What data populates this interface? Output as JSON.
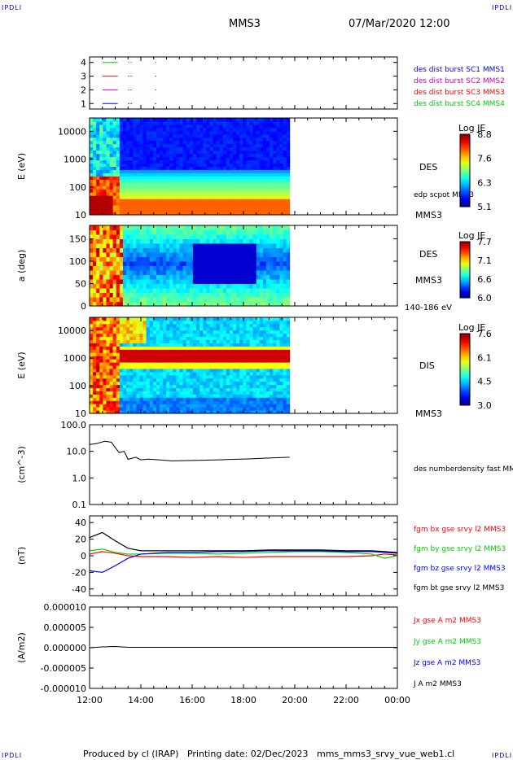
{
  "header": {
    "corner_left_top": "IPDLI",
    "corner_right_top": "IPDLI",
    "corner_left_bottom": "IPDLI",
    "corner_right_bottom": "IPDLI",
    "spacecraft": "MMS3",
    "datetime": "07/Mar/2020 12:00"
  },
  "footer": {
    "produced": "Produced by cl (IRAP)",
    "printing": "Printing date: 02/Dec/2023",
    "file": "mms_mms3_srvy_vue_web1.cl"
  },
  "x_axis": {
    "ticks": [
      "12:00",
      "14:00",
      "16:00",
      "18:00",
      "20:00",
      "22:00",
      "00:00"
    ]
  },
  "colors": {
    "c1": "#0000ff",
    "c2": "#cc00cc",
    "c3": "#ff0000",
    "c4": "#00cc00",
    "black": "#000000"
  },
  "chart_data": [
    {
      "type": "line",
      "panel": "burst-availability",
      "yticks": [
        "4",
        "3",
        "2",
        "1"
      ],
      "ylim": [
        0.6,
        4.4
      ],
      "series": [
        {
          "name": "des dist burst SC1 MMS1",
          "color": "#0000ff",
          "y": 1,
          "segments": [
            [
              12.5,
              13.1
            ],
            [
              13.5,
              13.55
            ],
            [
              13.6,
              13.65
            ],
            [
              14.55,
              14.6
            ]
          ]
        },
        {
          "name": "des dist burst SC2 MMS2",
          "color": "#cc00cc",
          "y": 2,
          "segments": [
            [
              12.5,
              13.1
            ],
            [
              13.5,
              13.55
            ],
            [
              13.6,
              13.65
            ],
            [
              14.55,
              14.6
            ]
          ]
        },
        {
          "name": "des dist burst SC3 MMS3",
          "color": "#ff0000",
          "y": 3,
          "segments": [
            [
              12.5,
              13.1
            ],
            [
              13.5,
              13.55
            ],
            [
              13.6,
              13.65
            ],
            [
              14.55,
              14.6
            ]
          ]
        },
        {
          "name": "des dist burst SC4 MMS4",
          "color": "#00cc00",
          "y": 4,
          "segments": [
            [
              12.5,
              13.1
            ],
            [
              13.5,
              13.55
            ],
            [
              13.6,
              13.65
            ],
            [
              14.55,
              14.6
            ]
          ]
        }
      ]
    },
    {
      "type": "heatmap",
      "panel": "des-energy-spectrogram",
      "ylabel": "E (eV)",
      "yticks": [
        "10000",
        "1000",
        "100",
        "10"
      ],
      "ylim_log": [
        10,
        30000
      ],
      "x_end_hour": 19.8,
      "label": "DES",
      "overlay_label": "edp scpot MMS3",
      "sc_label": "MMS3",
      "colorbar": {
        "title": "Log JE",
        "ticks": [
          "8.8",
          "7.6",
          "6.3",
          "5.1"
        ]
      }
    },
    {
      "type": "heatmap",
      "panel": "des-pitch-angle",
      "ylabel": "a (deg)",
      "yticks": [
        "150",
        "100",
        "50",
        "0"
      ],
      "ylim": [
        0,
        180
      ],
      "x_end_hour": 19.8,
      "label": "DES",
      "sc_label": "MMS3",
      "energy_range": "140-186 eV",
      "colorbar": {
        "title": "Log JE",
        "ticks": [
          "7.7",
          "7.1",
          "6.6",
          "6.0"
        ]
      }
    },
    {
      "type": "heatmap",
      "panel": "dis-energy-spectrogram",
      "ylabel": "E (eV)",
      "yticks": [
        "10000",
        "1000",
        "100",
        "10"
      ],
      "ylim_log": [
        10,
        30000
      ],
      "x_end_hour": 19.8,
      "label": "DIS",
      "sc_label": "MMS3",
      "colorbar": {
        "title": "Log JE",
        "ticks": [
          "7.6",
          "6.1",
          "4.5",
          "3.0"
        ]
      }
    },
    {
      "type": "line",
      "panel": "density",
      "ylabel": "(cm^-3)",
      "yticks": [
        "100.0",
        "10.0",
        "1.0",
        "0.1"
      ],
      "ylim_log": [
        0.1,
        100
      ],
      "series": [
        {
          "name": "des numberdensity fast MMS3",
          "color": "#000000",
          "x": [
            12.0,
            12.3,
            12.6,
            12.85,
            13.0,
            13.15,
            13.35,
            13.5,
            13.8,
            14.0,
            14.3,
            14.7,
            15.2,
            15.8,
            16.4,
            17.0,
            17.6,
            18.2,
            18.8,
            19.4,
            19.8
          ],
          "y": [
            18,
            20,
            24,
            22,
            14,
            9,
            10,
            5,
            6,
            4.8,
            5.1,
            4.8,
            4.4,
            4.5,
            4.6,
            4.8,
            5.0,
            5.2,
            5.5,
            5.8,
            6.0
          ]
        }
      ]
    },
    {
      "type": "line",
      "panel": "magnetic-field",
      "ylabel": "(nT)",
      "yticks": [
        "40",
        "20",
        "0",
        "-20",
        "-40"
      ],
      "ylim": [
        -48,
        48
      ],
      "series": [
        {
          "name": "fgm bx gse srvy l2 MMS3",
          "color": "#ff0000",
          "x": [
            12.0,
            12.5,
            13.0,
            13.5,
            14.0,
            15.0,
            16.0,
            17.0,
            18.0,
            19.0,
            20.0,
            21.0,
            22.0,
            23.0,
            23.5,
            24.0
          ],
          "y": [
            2,
            5,
            3,
            0,
            -1,
            -1,
            -2,
            -1,
            -2,
            -1,
            -1,
            -1,
            -1,
            0,
            2,
            1
          ]
        },
        {
          "name": "fgm by gse srvy l2 MMS3",
          "color": "#00cc00",
          "x": [
            12.0,
            12.5,
            13.0,
            13.5,
            14.0,
            15.0,
            16.0,
            17.0,
            18.0,
            19.0,
            20.0,
            21.0,
            22.0,
            23.0,
            23.5,
            24.0
          ],
          "y": [
            6,
            8,
            4,
            2,
            2,
            3,
            3,
            2,
            3,
            4,
            5,
            5,
            4,
            2,
            -3,
            0
          ]
        },
        {
          "name": "fgm bz gse srvy l2 MMS3",
          "color": "#0000ff",
          "x": [
            12.0,
            12.5,
            13.0,
            13.5,
            14.0,
            15.0,
            16.0,
            17.0,
            18.0,
            19.0,
            20.0,
            21.0,
            22.0,
            23.0,
            23.5,
            24.0
          ],
          "y": [
            -18,
            -20,
            -12,
            -3,
            2,
            4,
            4,
            5,
            5,
            6,
            6,
            6,
            5,
            5,
            4,
            3
          ]
        },
        {
          "name": "fgm bt gse srvy l2 MMS3",
          "color": "#000000",
          "x": [
            12.0,
            12.5,
            13.0,
            13.5,
            14.0,
            15.0,
            16.0,
            17.0,
            18.0,
            19.0,
            20.0,
            21.0,
            22.0,
            23.0,
            23.5,
            24.0
          ],
          "y": [
            22,
            28,
            18,
            9,
            6,
            6,
            6,
            6,
            6,
            7,
            7,
            7,
            6,
            6,
            5,
            4
          ]
        }
      ]
    },
    {
      "type": "line",
      "panel": "current-density",
      "ylabel": "(A/m2)",
      "yticks": [
        "0.000010",
        "0.000005",
        "0.000000",
        "-0.000005",
        "-0.000010"
      ],
      "ylim": [
        -1e-05,
        1e-05
      ],
      "series": [
        {
          "name": "Jx gse A m2 MMS3",
          "color": "#ff0000"
        },
        {
          "name": "Jy gse A m2 MMS3",
          "color": "#00cc00"
        },
        {
          "name": "Jz gse A m2 MMS3",
          "color": "#0000ff"
        },
        {
          "name": "J A m2 MMS3",
          "color": "#000000",
          "x": [
            12.0,
            12.5,
            13.0,
            13.5,
            14.0,
            16.0,
            18.0,
            20.0,
            22.0,
            24.0
          ],
          "y": [
            0,
            2e-07,
            3e-07,
            1e-07,
            1e-07,
            1e-07,
            1e-07,
            1e-07,
            1e-07,
            1e-07
          ]
        }
      ]
    }
  ]
}
